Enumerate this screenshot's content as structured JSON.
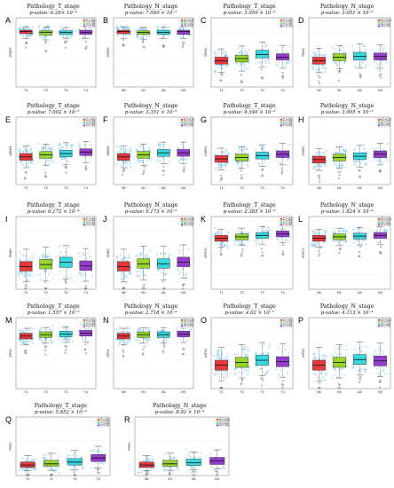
{
  "colors": [
    "#e8282b",
    "#8fd31a",
    "#27d7dd",
    "#8d2cc9"
  ],
  "chart_data": [
    {
      "type": "box",
      "panel": "A",
      "title": "Pathology_T_stage",
      "pvalue": "p-value: 6.28× 10⁻⁴",
      "ylabel": "SPDEF",
      "categories": [
        "T1",
        "T2",
        "T3",
        "T4"
      ],
      "legend": [
        "T1 (n=95)",
        "T2 (n=80)",
        "T3 (n=38)",
        "T4 (n=21)"
      ],
      "position_hint": "high",
      "ylim": [
        0,
        10
      ],
      "q1": [
        7.7,
        7.5,
        7.6,
        7.6
      ],
      "median": [
        8.0,
        7.9,
        7.9,
        7.9
      ],
      "q3": [
        8.2,
        8.1,
        8.1,
        8.2
      ],
      "whisker_low": [
        7.0,
        6.8,
        7.0,
        7.0
      ],
      "whisker_high": [
        8.7,
        8.6,
        8.6,
        8.7
      ]
    },
    {
      "type": "box",
      "panel": "B",
      "title": "Pathology_N_stage",
      "pvalue": "p-value: 7.069 × 10⁻⁵",
      "ylabel": "SPDEF",
      "categories": [
        "N0",
        "N1",
        "N2",
        "N3"
      ],
      "legend": [
        "N0 (n=130)",
        "N1 (n=57)",
        "N2 (n=29)",
        "N3 (n=18)"
      ],
      "position_hint": "high",
      "ylim": [
        0,
        10
      ],
      "q1": [
        7.7,
        7.6,
        7.6,
        7.6
      ],
      "median": [
        8.0,
        7.9,
        7.9,
        8.0
      ],
      "q3": [
        8.2,
        8.1,
        8.2,
        8.2
      ],
      "whisker_low": [
        7.0,
        6.9,
        7.0,
        7.0
      ],
      "whisker_high": [
        8.7,
        8.6,
        8.6,
        8.7
      ]
    },
    {
      "type": "box",
      "panel": "C",
      "title": "Pathology_T_stage",
      "pvalue": "p-value: 3.959 × 10⁻⁵",
      "ylabel": "TRIM3",
      "categories": [
        "T1",
        "T2",
        "T3",
        "T4"
      ],
      "legend": [
        "T1 (n=95)",
        "T2 (n=80)",
        "T3 (n=38)",
        "T4 (n=21)"
      ],
      "position_hint": "mid",
      "ylim": [
        0,
        10
      ],
      "q1": [
        3.3,
        3.6,
        4.2,
        3.9
      ],
      "median": [
        3.8,
        4.1,
        4.7,
        4.3
      ],
      "q3": [
        4.3,
        4.6,
        5.3,
        4.8
      ],
      "whisker_low": [
        2.1,
        2.3,
        2.9,
        2.7
      ],
      "whisker_high": [
        5.5,
        5.9,
        6.5,
        6.0
      ]
    },
    {
      "type": "box",
      "panel": "D",
      "title": "Pathology_N_stage",
      "pvalue": "p-value: 3.051 × 10⁻⁵",
      "ylabel": "TRIM3",
      "categories": [
        "N0",
        "N1",
        "N2",
        "N3"
      ],
      "legend": [
        "N0 (n=130)",
        "N1 (n=57)",
        "N2 (n=29)",
        "N3 (n=18)"
      ],
      "position_hint": "mid",
      "ylim": [
        0,
        10
      ],
      "q1": [
        3.3,
        3.8,
        3.9,
        3.9
      ],
      "median": [
        3.8,
        4.3,
        4.4,
        4.4
      ],
      "q3": [
        4.3,
        4.8,
        5.0,
        4.9
      ],
      "whisker_low": [
        2.1,
        2.6,
        2.7,
        2.7
      ],
      "whisker_high": [
        5.6,
        6.0,
        6.2,
        6.1
      ]
    },
    {
      "type": "box",
      "panel": "E",
      "title": "Pathology_T_stage",
      "pvalue": "p-value: 7.002 × 10⁻⁵",
      "ylabel": "ABCB9",
      "categories": [
        "T1",
        "T2",
        "T3",
        "T4"
      ],
      "legend": [
        "T1 (n=95)",
        "T2 (n=80)",
        "T3 (n=38)",
        "T4 (n=21)"
      ],
      "position_hint": "mid",
      "ylim": [
        0,
        10
      ],
      "q1": [
        3.6,
        3.9,
        4.1,
        4.3
      ],
      "median": [
        4.1,
        4.4,
        4.6,
        4.8
      ],
      "q3": [
        4.6,
        4.9,
        5.1,
        5.3
      ],
      "whisker_low": [
        2.5,
        2.8,
        3.0,
        3.2
      ],
      "whisker_high": [
        5.7,
        6.0,
        6.2,
        6.4
      ]
    },
    {
      "type": "box",
      "panel": "F",
      "title": "Pathology_N_stage",
      "pvalue": "p-value: 3.351 × 10⁻⁵",
      "ylabel": "ABCB9",
      "categories": [
        "N0",
        "N1",
        "N2",
        "N3"
      ],
      "legend": [
        "N0 (n=130)",
        "N1 (n=57)",
        "N2 (n=29)",
        "N3 (n=18)"
      ],
      "position_hint": "mid",
      "ylim": [
        0,
        10
      ],
      "q1": [
        3.6,
        3.9,
        4.2,
        4.2
      ],
      "median": [
        4.1,
        4.4,
        4.7,
        4.7
      ],
      "q3": [
        4.6,
        4.9,
        5.2,
        5.2
      ],
      "whisker_low": [
        2.5,
        2.8,
        3.1,
        3.1
      ],
      "whisker_high": [
        5.7,
        6.0,
        6.3,
        6.3
      ]
    },
    {
      "type": "box",
      "panel": "G",
      "title": "Pathology_T_stage",
      "pvalue": "p-value: 4.346 × 10⁻⁵",
      "ylabel": "HSPB1",
      "categories": [
        "T1",
        "T2",
        "T3",
        "T4"
      ],
      "legend": [
        "T1 (n=95)",
        "T2 (n=80)",
        "T3 (n=38)",
        "T4 (n=21)"
      ],
      "position_hint": "mid",
      "ylim": [
        0,
        10
      ],
      "q1": [
        3.3,
        3.5,
        3.8,
        4.0
      ],
      "median": [
        3.8,
        4.0,
        4.3,
        4.5
      ],
      "q3": [
        4.3,
        4.5,
        4.8,
        5.0
      ],
      "whisker_low": [
        2.2,
        2.4,
        2.7,
        2.9
      ],
      "whisker_high": [
        5.4,
        5.6,
        5.9,
        6.1
      ]
    },
    {
      "type": "box",
      "panel": "H",
      "title": "Pathology_N_stage",
      "pvalue": "p-value: 3.905 × 10⁻⁵",
      "ylabel": "HSPB1",
      "categories": [
        "N0",
        "N1",
        "N2",
        "N3"
      ],
      "legend": [
        "N0 (n=130)",
        "N1 (n=57)",
        "N2 (n=29)",
        "N3 (n=18)"
      ],
      "position_hint": "mid",
      "ylim": [
        0,
        10
      ],
      "q1": [
        3.2,
        3.5,
        3.7,
        4.0
      ],
      "median": [
        3.7,
        4.0,
        4.2,
        4.5
      ],
      "q3": [
        4.2,
        4.5,
        4.7,
        5.0
      ],
      "whisker_low": [
        2.1,
        2.4,
        2.6,
        2.9
      ],
      "whisker_high": [
        5.3,
        5.6,
        5.8,
        6.1
      ]
    },
    {
      "type": "box",
      "panel": "I",
      "title": "Pathology_T_stage",
      "pvalue": "p-value: 6.172 × 10⁻⁴",
      "ylabel": "RHBG",
      "categories": [
        "T1",
        "T2",
        "T3",
        "T4"
      ],
      "legend": [
        "T1 (n=95)",
        "T2 (n=80)",
        "T3 (n=38)",
        "T4 (n=21)"
      ],
      "position_hint": "low",
      "ylim": [
        0,
        10
      ],
      "q1": [
        2.5,
        2.8,
        3.0,
        2.6
      ],
      "median": [
        3.1,
        3.4,
        3.7,
        3.2
      ],
      "q3": [
        3.8,
        4.1,
        4.4,
        3.9
      ],
      "whisker_low": [
        1.0,
        1.2,
        1.4,
        1.1
      ],
      "whisker_high": [
        5.5,
        5.8,
        6.0,
        5.6
      ]
    },
    {
      "type": "box",
      "panel": "J",
      "title": "Pathology_N_stage",
      "pvalue": "p-value: 9.173 × 10⁻⁵",
      "ylabel": "RHBG",
      "categories": [
        "N0",
        "N1",
        "N2",
        "N3"
      ],
      "legend": [
        "N0 (n=130)",
        "N1 (n=57)",
        "N2 (n=29)",
        "N3 (n=18)"
      ],
      "position_hint": "low",
      "ylim": [
        0,
        10
      ],
      "q1": [
        2.5,
        2.9,
        2.9,
        3.1
      ],
      "median": [
        3.1,
        3.5,
        3.5,
        3.7
      ],
      "q3": [
        3.8,
        4.2,
        4.2,
        4.4
      ],
      "whisker_low": [
        1.0,
        1.3,
        1.3,
        1.5
      ],
      "whisker_high": [
        5.5,
        5.9,
        5.9,
        6.1
      ]
    },
    {
      "type": "box",
      "panel": "K",
      "title": "Pathology_T_stage",
      "pvalue": "p-value: 2.385 × 10⁻⁵",
      "ylabel": "SPINT1",
      "categories": [
        "T1",
        "T2",
        "T3",
        "T4"
      ],
      "legend": [
        "T1 (n=95)",
        "T2 (n=80)",
        "T3 (n=38)",
        "T4 (n=21)"
      ],
      "position_hint": "high",
      "ylim": [
        0,
        10
      ],
      "q1": [
        6.6,
        6.8,
        7.0,
        7.2
      ],
      "median": [
        7.0,
        7.2,
        7.4,
        7.6
      ],
      "q3": [
        7.4,
        7.6,
        7.8,
        8.0
      ],
      "whisker_low": [
        5.8,
        6.0,
        6.2,
        6.4
      ],
      "whisker_high": [
        8.2,
        8.4,
        8.6,
        8.7
      ]
    },
    {
      "type": "box",
      "panel": "L",
      "title": "Pathology_N_stage",
      "pvalue": "p-value: 1.824 × 10⁻⁴",
      "ylabel": "SPINT1",
      "categories": [
        "N0",
        "N1",
        "N2",
        "N3"
      ],
      "legend": [
        "N0 (n=130)",
        "N1 (n=57)",
        "N2 (n=29)",
        "N3 (n=18)"
      ],
      "position_hint": "high",
      "ylim": [
        0,
        10
      ],
      "q1": [
        6.6,
        6.8,
        6.9,
        7.0
      ],
      "median": [
        7.0,
        7.2,
        7.3,
        7.4
      ],
      "q3": [
        7.4,
        7.6,
        7.7,
        7.8
      ],
      "whisker_low": [
        5.8,
        6.0,
        6.1,
        6.2
      ],
      "whisker_high": [
        8.2,
        8.4,
        8.5,
        8.6
      ]
    },
    {
      "type": "box",
      "panel": "M",
      "title": "Pathology_T_stage",
      "pvalue": "p-value: 1.557 × 10⁻⁵",
      "ylabel": "EPN3",
      "categories": [
        "T1",
        "T2",
        "T3",
        "T4"
      ],
      "legend": [
        "T1 (n=95)",
        "T2 (n=80)",
        "T3 (n=38)",
        "T4 (n=21)"
      ],
      "position_hint": "high",
      "ylim": [
        0,
        10
      ],
      "q1": [
        7.0,
        7.2,
        7.3,
        7.4
      ],
      "median": [
        7.4,
        7.6,
        7.7,
        7.8
      ],
      "q3": [
        7.8,
        8.0,
        8.1,
        8.2
      ],
      "whisker_low": [
        6.2,
        6.4,
        6.5,
        6.6
      ],
      "whisker_high": [
        8.5,
        8.6,
        8.7,
        8.8
      ]
    },
    {
      "type": "box",
      "panel": "N",
      "title": "Pathology_N_stage",
      "pvalue": "p-value: 2.718 × 10⁻⁴",
      "ylabel": "EPN3",
      "categories": [
        "N0",
        "N1",
        "N2",
        "N3"
      ],
      "legend": [
        "N0 (n=130)",
        "N1 (n=57)",
        "N2 (n=29)",
        "N3 (n=18)"
      ],
      "position_hint": "high",
      "ylim": [
        0,
        10
      ],
      "q1": [
        7.0,
        7.2,
        7.2,
        7.3
      ],
      "median": [
        7.4,
        7.6,
        7.6,
        7.7
      ],
      "q3": [
        7.8,
        8.0,
        8.0,
        8.1
      ],
      "whisker_low": [
        6.2,
        6.4,
        6.4,
        6.5
      ],
      "whisker_high": [
        8.5,
        8.6,
        8.6,
        8.7
      ]
    },
    {
      "type": "box",
      "panel": "O",
      "title": "Pathology_T_stage",
      "pvalue": "p-value: 4.02 × 10⁻⁵",
      "ylabel": "LRFN2",
      "categories": [
        "T1",
        "T2",
        "T3",
        "T4"
      ],
      "legend": [
        "T1 (n=95)",
        "T2 (n=80)",
        "T3 (n=38)",
        "T4 (n=21)"
      ],
      "position_hint": "low",
      "ylim": [
        0,
        10
      ],
      "q1": [
        2.6,
        3.0,
        3.3,
        3.1
      ],
      "median": [
        3.3,
        3.7,
        4.0,
        3.8
      ],
      "q3": [
        4.0,
        4.4,
        4.7,
        4.5
      ],
      "whisker_low": [
        1.1,
        1.5,
        1.8,
        1.6
      ],
      "whisker_high": [
        5.8,
        6.2,
        6.5,
        6.3
      ]
    },
    {
      "type": "box",
      "panel": "P",
      "title": "Pathology_N_stage",
      "pvalue": "p-value: 4.113 × 10⁻⁴",
      "ylabel": "LRFN2",
      "categories": [
        "N0",
        "N1",
        "N2",
        "N3"
      ],
      "legend": [
        "N0 (n=130)",
        "N1 (n=57)",
        "N2 (n=29)",
        "N3 (n=18)"
      ],
      "position_hint": "low",
      "ylim": [
        0,
        10
      ],
      "q1": [
        2.6,
        3.0,
        3.4,
        3.2
      ],
      "median": [
        3.3,
        3.7,
        4.1,
        3.9
      ],
      "q3": [
        4.0,
        4.4,
        4.8,
        4.6
      ],
      "whisker_low": [
        1.1,
        1.5,
        1.9,
        1.7
      ],
      "whisker_high": [
        5.8,
        6.2,
        6.6,
        6.4
      ]
    },
    {
      "type": "box",
      "panel": "Q",
      "title": "Pathology_T_stage",
      "pvalue": "p-value: 5.852 × 10⁻⁴",
      "ylabel": "PRPH",
      "categories": [
        "T1",
        "T2",
        "T3",
        "T4"
      ],
      "legend": [
        "T1 (n=95)",
        "T2 (n=80)",
        "T3 (n=38)",
        "T4 (n=21)"
      ],
      "position_hint": "low",
      "ylim": [
        0,
        10
      ],
      "q1": [
        1.4,
        1.6,
        1.8,
        2.4
      ],
      "median": [
        1.8,
        2.0,
        2.3,
        3.0
      ],
      "q3": [
        2.3,
        2.6,
        2.9,
        3.6
      ],
      "whisker_low": [
        0.8,
        0.9,
        1.0,
        1.3
      ],
      "whisker_high": [
        3.4,
        3.8,
        4.3,
        5.0
      ]
    },
    {
      "type": "box",
      "panel": "R",
      "title": "Pathology_N_stage",
      "pvalue": "p-value: 8.92 × 10⁻⁴",
      "ylabel": "PRPH",
      "categories": [
        "N0",
        "N1",
        "N2",
        "N3"
      ],
      "legend": [
        "N0 (n=130)",
        "N1 (n=57)",
        "N2 (n=29)",
        "N3 (n=18)"
      ],
      "position_hint": "low",
      "ylim": [
        0,
        10
      ],
      "q1": [
        1.4,
        1.6,
        1.7,
        1.9
      ],
      "median": [
        1.8,
        2.0,
        2.2,
        2.5
      ],
      "q3": [
        2.3,
        2.6,
        2.8,
        3.1
      ],
      "whisker_low": [
        0.8,
        0.9,
        1.0,
        1.1
      ],
      "whisker_high": [
        3.4,
        3.8,
        4.0,
        4.4
      ]
    }
  ]
}
